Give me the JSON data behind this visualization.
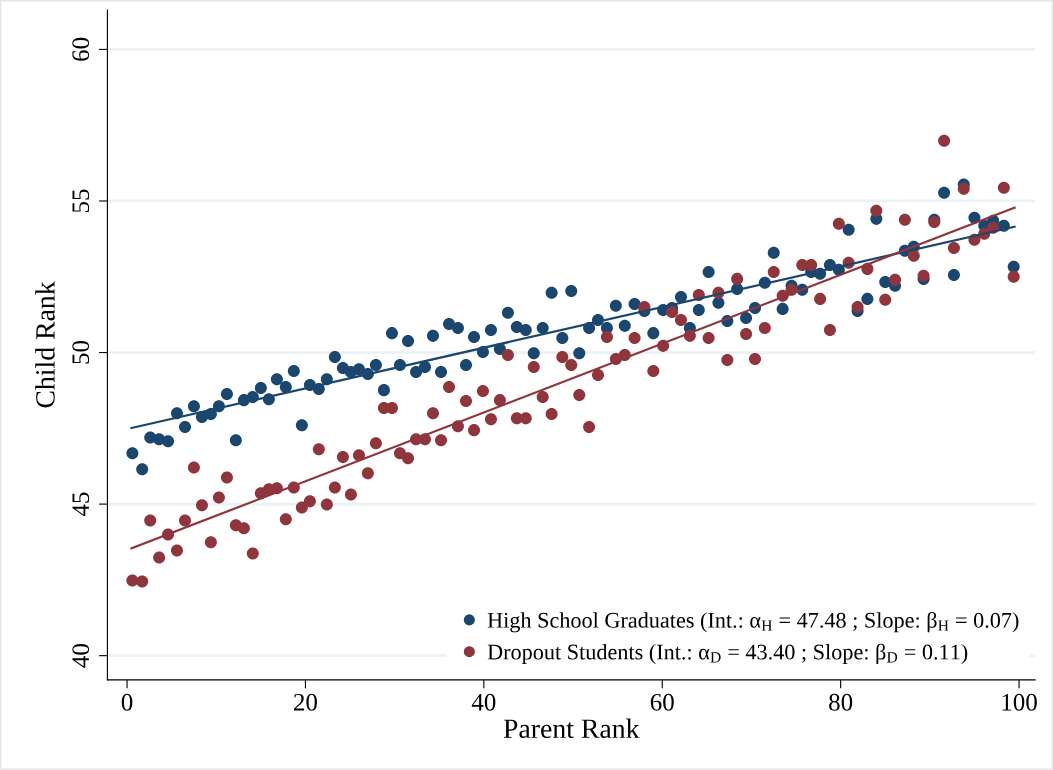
{
  "chart_data": {
    "type": "scatter",
    "xlabel": "Parent Rank",
    "ylabel": "Child Rank",
    "xlim": [
      -2.2,
      101.8
    ],
    "ylim": [
      39.2,
      61.3
    ],
    "xticks": [
      0,
      20,
      40,
      60,
      80,
      100
    ],
    "yticks": [
      40,
      45,
      50,
      55,
      60
    ],
    "grid": "y",
    "legend": "bottom right",
    "marker": "circle",
    "series": [
      {
        "name": "High School Graduates (Int.: α$_{H}$ = 47.48 ; Slope: β$_{H}$ = 0.07)",
        "color": "#1a476f",
        "x": [
          0.6,
          1.7,
          2.6,
          3.6,
          4.6,
          5.6,
          6.5,
          7.5,
          8.4,
          9.4,
          10.3,
          11.2,
          12.2,
          13.1,
          14.1,
          15.0,
          15.9,
          16.8,
          17.8,
          18.7,
          19.6,
          20.5,
          21.5,
          22.4,
          23.3,
          24.2,
          25.1,
          26.0,
          27.0,
          27.9,
          28.8,
          29.7,
          30.6,
          31.5,
          32.4,
          33.4,
          34.3,
          35.2,
          36.1,
          37.1,
          38.0,
          38.9,
          39.9,
          40.8,
          41.8,
          42.7,
          43.7,
          44.7,
          45.6,
          46.6,
          47.6,
          48.8,
          49.8,
          50.7,
          51.8,
          52.8,
          53.8,
          54.8,
          55.8,
          56.9,
          58.0,
          59.0,
          60.1,
          61.1,
          62.1,
          63.1,
          64.1,
          65.2,
          66.3,
          67.3,
          68.4,
          69.4,
          70.4,
          71.5,
          72.5,
          73.5,
          74.5,
          75.7,
          76.7,
          77.7,
          78.8,
          79.8,
          80.9,
          81.9,
          83.0,
          84.0,
          85.0,
          86.1,
          87.2,
          88.2,
          89.3,
          90.5,
          91.6,
          92.7,
          93.8,
          95.0,
          96.1,
          97.1,
          98.3,
          99.4
        ],
        "values": [
          46.68,
          46.15,
          47.2,
          47.14,
          47.07,
          48.0,
          47.54,
          48.23,
          47.87,
          47.97,
          48.23,
          48.63,
          47.11,
          48.43,
          48.53,
          48.83,
          48.46,
          49.12,
          48.86,
          49.39,
          47.6,
          48.93,
          48.8,
          49.12,
          49.85,
          49.49,
          49.36,
          49.45,
          49.29,
          49.59,
          48.76,
          50.64,
          49.59,
          50.38,
          49.36,
          49.52,
          50.55,
          49.36,
          50.94,
          50.81,
          49.59,
          50.51,
          50.02,
          50.74,
          50.12,
          51.31,
          50.84,
          50.74,
          49.98,
          50.81,
          51.97,
          50.48,
          52.03,
          49.98,
          50.81,
          51.07,
          50.81,
          51.54,
          50.88,
          51.6,
          51.37,
          50.64,
          51.4,
          51.47,
          51.83,
          50.81,
          51.4,
          52.66,
          51.64,
          51.04,
          52.1,
          51.14,
          51.47,
          52.3,
          53.29,
          51.44,
          52.2,
          52.07,
          52.66,
          52.6,
          52.89,
          52.73,
          54.05,
          51.37,
          51.77,
          54.41,
          52.33,
          52.2,
          53.36,
          53.49,
          52.43,
          54.38,
          55.27,
          52.56,
          55.54,
          54.45,
          54.18,
          54.35,
          54.18,
          52.83
        ]
      },
      {
        "name": "Dropout Students (Int.: α$_{D}$ = 43.40 ; Slope: β$_{D}$ = 0.11)",
        "color": "#90353b",
        "x": [
          0.6,
          1.7,
          2.6,
          3.6,
          4.6,
          5.6,
          6.5,
          7.5,
          8.4,
          9.4,
          10.3,
          11.2,
          12.2,
          13.1,
          14.1,
          15.0,
          15.9,
          16.8,
          17.8,
          18.7,
          19.6,
          20.5,
          21.5,
          22.4,
          23.3,
          24.2,
          25.1,
          26.0,
          27.0,
          27.9,
          28.8,
          29.7,
          30.6,
          31.5,
          32.4,
          33.4,
          34.3,
          35.2,
          36.1,
          37.1,
          38.0,
          38.9,
          39.9,
          40.8,
          41.8,
          42.7,
          43.7,
          44.7,
          45.6,
          46.6,
          47.6,
          48.8,
          49.8,
          50.7,
          51.8,
          52.8,
          53.8,
          54.8,
          55.8,
          56.9,
          58.0,
          59.0,
          60.1,
          61.1,
          62.1,
          63.1,
          64.1,
          65.2,
          66.3,
          67.3,
          68.4,
          69.4,
          70.4,
          71.5,
          72.5,
          73.5,
          74.5,
          75.7,
          76.7,
          77.7,
          78.8,
          79.8,
          80.9,
          81.9,
          83.0,
          84.0,
          85.0,
          86.1,
          87.2,
          88.2,
          89.3,
          90.5,
          91.6,
          92.7,
          93.8,
          95.0,
          96.1,
          97.1,
          98.3,
          99.4
        ],
        "values": [
          42.48,
          42.45,
          44.46,
          43.24,
          44.0,
          43.47,
          44.46,
          46.21,
          44.96,
          43.74,
          45.22,
          45.88,
          44.3,
          44.2,
          43.37,
          45.36,
          45.49,
          45.52,
          44.5,
          45.55,
          44.89,
          45.09,
          46.81,
          44.99,
          45.55,
          46.55,
          45.32,
          46.61,
          46.02,
          47.01,
          48.17,
          48.17,
          46.68,
          46.51,
          47.14,
          47.14,
          48.0,
          47.11,
          48.86,
          47.57,
          48.4,
          47.44,
          48.73,
          47.8,
          48.43,
          49.92,
          47.83,
          47.83,
          49.52,
          48.53,
          47.97,
          49.85,
          49.59,
          48.6,
          47.54,
          49.26,
          50.51,
          49.79,
          49.92,
          50.48,
          51.5,
          49.39,
          50.22,
          51.34,
          51.07,
          50.55,
          51.9,
          50.48,
          51.97,
          49.75,
          52.43,
          50.61,
          49.79,
          50.81,
          52.66,
          51.87,
          52.07,
          52.89,
          52.89,
          51.77,
          50.74,
          54.25,
          52.96,
          51.5,
          52.76,
          54.68,
          51.74,
          52.4,
          54.38,
          53.19,
          52.53,
          54.31,
          56.99,
          53.45,
          55.4,
          53.72,
          53.92,
          54.12,
          55.44,
          52.5
        ]
      },
      {
        "color": "#1a476f",
        "type": "line",
        "marker": "none",
        "x": [
          0.5,
          99.5
        ],
        "values": [
          47.51,
          54.15
        ]
      },
      {
        "color": "#90353b",
        "type": "line",
        "marker": "none",
        "x": [
          0.5,
          99.5
        ],
        "values": [
          43.54,
          54.78
        ]
      }
    ]
  }
}
